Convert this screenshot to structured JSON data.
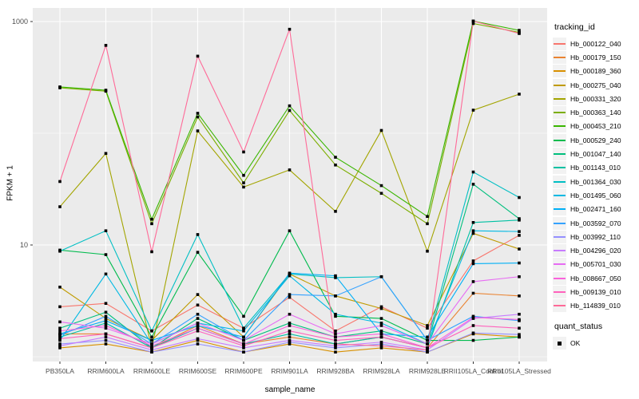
{
  "chart_data": {
    "type": "line",
    "title": "",
    "xlabel": "sample_name",
    "ylabel": "FPKM + 1",
    "y_scale": "log10",
    "y_tick_values": [
      1000,
      10
    ],
    "y_tick_labels": [
      "1000",
      "10"
    ],
    "y_minor_values": [
      100,
      1
    ],
    "ylim": [
      0.9,
      1320
    ],
    "grid": true,
    "panel_bg": "#EBEBEB",
    "grid_color": "#FFFFFF",
    "axis_text_color": "#4D4D4D",
    "point_color": "#000000",
    "legend_title": "tracking_id",
    "legend2_title": "quant_status",
    "quant_status_label": "OK",
    "categories": [
      "PB350LA",
      "RRIM600LA",
      "RRIM600LE",
      "RRIM600SE",
      "RRIM600PE",
      "RRIM901LA",
      "RRIM928BA",
      "RRIM928LA",
      "RRIM928LE",
      "RRII105LA_Control",
      "RRII105LA_Stressed"
    ],
    "series": [
      {
        "name": "Hb_000122_040",
        "color": "#F8766D",
        "values": [
          2.8,
          3.0,
          1.7,
          2.9,
          1.8,
          3.4,
          1.7,
          2.8,
          1.8,
          7.2,
          12.2
        ]
      },
      {
        "name": "Hb_000179_150",
        "color": "#EA8331",
        "values": [
          1.6,
          1.6,
          1.2,
          1.9,
          1.3,
          1.5,
          1.3,
          1.5,
          1.2,
          3.7,
          3.5
        ]
      },
      {
        "name": "Hb_000189_360",
        "color": "#D89000",
        "values": [
          1.2,
          1.3,
          1.1,
          1.4,
          1.1,
          1.3,
          1.1,
          1.2,
          1.1,
          1.6,
          1.5
        ]
      },
      {
        "name": "Hb_000275_040",
        "color": "#C09B00",
        "values": [
          4.2,
          2.2,
          1.4,
          3.6,
          1.5,
          5.5,
          3.5,
          2.7,
          1.9,
          12.7,
          9.2
        ]
      },
      {
        "name": "Hb_000331_320",
        "color": "#A3A500",
        "values": [
          22,
          66,
          1.2,
          105,
          33,
          47,
          20,
          106,
          8.8,
          161,
          224
        ]
      },
      {
        "name": "Hb_000363_140",
        "color": "#7CAE00",
        "values": [
          255,
          238,
          15.5,
          140,
          36,
          160,
          52,
          29,
          15.5,
          960,
          800
        ]
      },
      {
        "name": "Hb_000453_210",
        "color": "#39B600",
        "values": [
          260,
          243,
          17,
          151,
          42,
          176,
          61,
          34,
          18,
          1010,
          834
        ]
      },
      {
        "name": "Hb_000529_240",
        "color": "#00BB4E",
        "values": [
          9.0,
          8.2,
          1.5,
          8.6,
          2.3,
          13.4,
          2.3,
          2.2,
          1.4,
          1.4,
          1.5
        ]
      },
      {
        "name": "Hb_001047_140",
        "color": "#00BF7D",
        "values": [
          1.8,
          2.5,
          1.2,
          2.2,
          1.4,
          2.0,
          1.5,
          1.7,
          1.3,
          35,
          17.2
        ]
      },
      {
        "name": "Hb_001143_010",
        "color": "#00C1A3",
        "values": [
          1.5,
          2.0,
          1.2,
          1.8,
          1.3,
          1.6,
          1.3,
          1.5,
          1.2,
          15.9,
          16.7
        ]
      },
      {
        "name": "Hb_001364_030",
        "color": "#00BFC4",
        "values": [
          8.8,
          13.4,
          1.7,
          12.4,
          1.8,
          5.5,
          5.1,
          5.2,
          1.4,
          45,
          26.6
        ]
      },
      {
        "name": "Hb_001495_060",
        "color": "#00B9E3",
        "values": [
          1.4,
          5.5,
          1.3,
          2.0,
          1.7,
          5.3,
          2.4,
          2.0,
          1.3,
          13.4,
          13.2
        ]
      },
      {
        "name": "Hb_002471_160",
        "color": "#00B0F6",
        "values": [
          1.6,
          2.1,
          1.4,
          1.9,
          1.5,
          5.6,
          5.3,
          1.6,
          1.5,
          6.8,
          6.9
        ]
      },
      {
        "name": "Hb_003592_070",
        "color": "#35A2FF",
        "values": [
          1.55,
          2.3,
          1.3,
          2.4,
          1.4,
          3.6,
          3.5,
          5.2,
          1.4,
          2.3,
          2.1
        ]
      },
      {
        "name": "Hb_003992_110",
        "color": "#9590FF",
        "values": [
          1.3,
          1.4,
          1.1,
          1.3,
          1.1,
          1.35,
          1.2,
          1.3,
          1.1,
          1.63,
          1.58
        ]
      },
      {
        "name": "Hb_004296_020",
        "color": "#C77CFF",
        "values": [
          1.25,
          1.5,
          1.15,
          1.45,
          1.2,
          1.4,
          1.25,
          1.35,
          1.15,
          2.2,
          2.4
        ]
      },
      {
        "name": "Hb_005701_030",
        "color": "#E76BF3",
        "values": [
          2.05,
          1.8,
          1.3,
          2.0,
          1.4,
          2.4,
          1.6,
          1.9,
          1.3,
          4.7,
          5.2
        ]
      },
      {
        "name": "Hb_008667_050",
        "color": "#FA62DB",
        "values": [
          1.7,
          1.9,
          1.25,
          1.8,
          1.3,
          1.9,
          1.5,
          1.6,
          1.2,
          2.25,
          2.15
        ]
      },
      {
        "name": "Hb_009139_010",
        "color": "#FF62BC",
        "values": [
          1.45,
          1.6,
          1.2,
          1.7,
          1.25,
          1.7,
          1.4,
          1.5,
          1.2,
          1.9,
          1.8
        ]
      },
      {
        "name": "Hb_114839_010",
        "color": "#FF6A98",
        "values": [
          37,
          612,
          8.7,
          490,
          68,
          853,
          1.3,
          1.25,
          1.15,
          1010,
          781
        ]
      }
    ]
  }
}
